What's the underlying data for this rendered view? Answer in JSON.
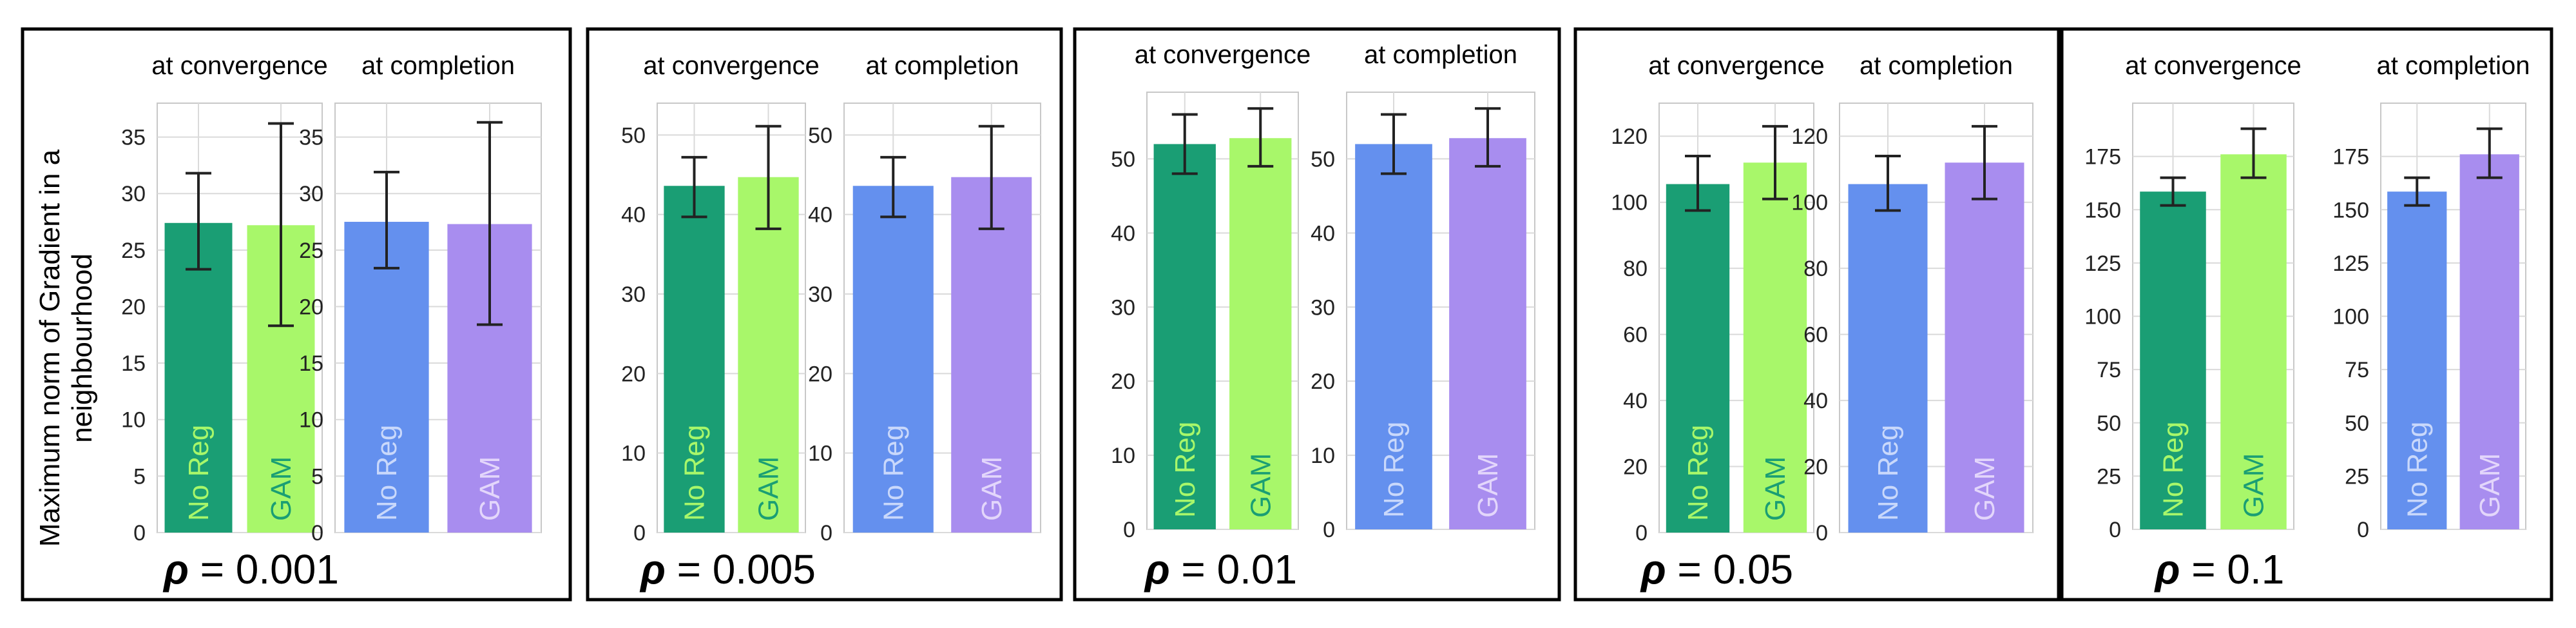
{
  "y_axis_label_line1": "Maximum norm of Gradient in a",
  "y_axis_label_line2": "neighbourhood",
  "chart_data": [
    {
      "type": "bar",
      "rho_symbol": "ρ",
      "rho_label": "= 0.001",
      "subplots": [
        {
          "title": "at convergence",
          "categories": [
            "No Reg",
            "GAM"
          ],
          "values": [
            27.4,
            27.2
          ],
          "err_low": [
            23.3,
            18.3
          ],
          "err_high": [
            31.8,
            36.2
          ],
          "colors": [
            "#1a9e74",
            "#a8f76a"
          ],
          "label_colors": [
            "#a8f76a",
            "#1a9e74"
          ],
          "ylim": [
            0,
            38
          ],
          "yticks": [
            0,
            5,
            10,
            15,
            20,
            25,
            30,
            35
          ]
        },
        {
          "title": "at completion",
          "categories": [
            "No Reg",
            "GAM"
          ],
          "values": [
            27.5,
            27.3
          ],
          "err_low": [
            23.4,
            18.4
          ],
          "err_high": [
            31.9,
            36.3
          ],
          "colors": [
            "#6490ee",
            "#a88def"
          ],
          "label_colors": [
            "#c9d8fb",
            "#e3d6fb"
          ],
          "ylim": [
            0,
            38
          ],
          "yticks": [
            0,
            5,
            10,
            15,
            20,
            25,
            30,
            35
          ]
        }
      ]
    },
    {
      "type": "bar",
      "rho_symbol": "ρ",
      "rho_label": "= 0.005",
      "subplots": [
        {
          "title": "at convergence",
          "categories": [
            "No Reg",
            "GAM"
          ],
          "values": [
            43.6,
            44.7
          ],
          "err_low": [
            39.7,
            38.2
          ],
          "err_high": [
            47.2,
            51.1
          ],
          "colors": [
            "#1a9e74",
            "#a8f76a"
          ],
          "label_colors": [
            "#a8f76a",
            "#1a9e74"
          ],
          "ylim": [
            0,
            54
          ],
          "yticks": [
            0,
            10,
            20,
            30,
            40,
            50
          ]
        },
        {
          "title": "at completion",
          "categories": [
            "No Reg",
            "GAM"
          ],
          "values": [
            43.6,
            44.7
          ],
          "err_low": [
            39.7,
            38.2
          ],
          "err_high": [
            47.2,
            51.1
          ],
          "colors": [
            "#6490ee",
            "#a88def"
          ],
          "label_colors": [
            "#c9d8fb",
            "#e3d6fb"
          ],
          "ylim": [
            0,
            54
          ],
          "yticks": [
            0,
            10,
            20,
            30,
            40,
            50
          ]
        }
      ]
    },
    {
      "type": "bar",
      "rho_symbol": "ρ",
      "rho_label": "= 0.01",
      "subplots": [
        {
          "title": "at convergence",
          "categories": [
            "No Reg",
            "GAM"
          ],
          "values": [
            52.0,
            52.8
          ],
          "err_low": [
            48.0,
            49.0
          ],
          "err_high": [
            56.0,
            56.8
          ],
          "colors": [
            "#1a9e74",
            "#a8f76a"
          ],
          "label_colors": [
            "#a8f76a",
            "#1a9e74"
          ],
          "ylim": [
            0,
            59
          ],
          "yticks": [
            0,
            10,
            20,
            30,
            40,
            50
          ]
        },
        {
          "title": "at completion",
          "categories": [
            "No Reg",
            "GAM"
          ],
          "values": [
            52.0,
            52.8
          ],
          "err_low": [
            48.0,
            49.0
          ],
          "err_high": [
            56.0,
            56.8
          ],
          "colors": [
            "#6490ee",
            "#a88def"
          ],
          "label_colors": [
            "#c9d8fb",
            "#e3d6fb"
          ],
          "ylim": [
            0,
            59
          ],
          "yticks": [
            0,
            10,
            20,
            30,
            40,
            50
          ]
        }
      ]
    },
    {
      "type": "bar",
      "rho_symbol": "ρ",
      "rho_label": "= 0.05",
      "subplots": [
        {
          "title": "at convergence",
          "categories": [
            "No Reg",
            "GAM"
          ],
          "values": [
            105.5,
            112.0
          ],
          "err_low": [
            97.5,
            101.0
          ],
          "err_high": [
            114.0,
            123.0
          ],
          "colors": [
            "#1a9e74",
            "#a8f76a"
          ],
          "label_colors": [
            "#a8f76a",
            "#1a9e74"
          ],
          "ylim": [
            0,
            130
          ],
          "yticks": [
            0,
            20,
            40,
            60,
            80,
            100,
            120
          ]
        },
        {
          "title": "at completion",
          "categories": [
            "No Reg",
            "GAM"
          ],
          "values": [
            105.5,
            112.0
          ],
          "err_low": [
            97.5,
            101.0
          ],
          "err_high": [
            114.0,
            123.0
          ],
          "colors": [
            "#6490ee",
            "#a88def"
          ],
          "label_colors": [
            "#c9d8fb",
            "#e3d6fb"
          ],
          "ylim": [
            0,
            130
          ],
          "yticks": [
            0,
            20,
            40,
            60,
            80,
            100,
            120
          ]
        }
      ]
    },
    {
      "type": "bar",
      "rho_symbol": "ρ",
      "rho_label": "= 0.1",
      "subplots": [
        {
          "title": "at convergence",
          "categories": [
            "No Reg",
            "GAM"
          ],
          "values": [
            158.5,
            176.0
          ],
          "err_low": [
            152.0,
            165.0
          ],
          "err_high": [
            165.0,
            188.0
          ],
          "colors": [
            "#1a9e74",
            "#a8f76a"
          ],
          "label_colors": [
            "#a8f76a",
            "#1a9e74"
          ],
          "ylim": [
            0,
            200
          ],
          "yticks": [
            0,
            25,
            50,
            75,
            100,
            125,
            150,
            175
          ]
        },
        {
          "title": "at completion",
          "categories": [
            "No Reg",
            "GAM"
          ],
          "values": [
            158.5,
            176.0
          ],
          "err_low": [
            152.0,
            165.0
          ],
          "err_high": [
            165.0,
            188.0
          ],
          "colors": [
            "#6490ee",
            "#a88def"
          ],
          "label_colors": [
            "#c9d8fb",
            "#e3d6fb"
          ],
          "ylim": [
            0,
            200
          ],
          "yticks": [
            0,
            25,
            50,
            75,
            100,
            125,
            150,
            175
          ]
        }
      ]
    }
  ]
}
